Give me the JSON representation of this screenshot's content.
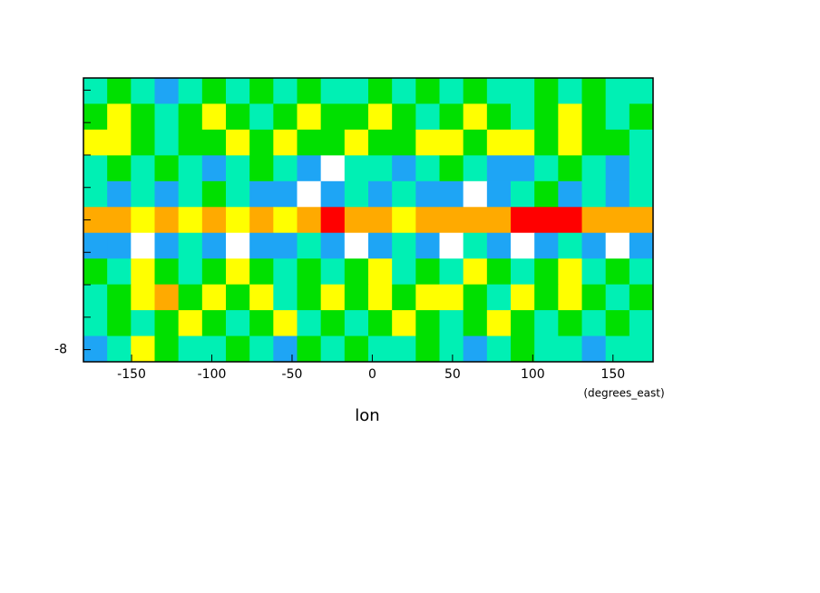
{
  "chart_data": {
    "type": "contour",
    "xlabel": "lon",
    "xunits": "(degrees_east)",
    "xlim": [
      -180,
      175
    ],
    "xticks": [
      -150,
      -100,
      -50,
      0,
      50,
      100,
      150
    ],
    "ylim": [
      -8.75,
      8.75
    ],
    "yticks": [
      -8,
      -6,
      -4,
      -2,
      0,
      2,
      4,
      6,
      8
    ],
    "ytick_labels": [
      "-8",
      null,
      null,
      null,
      null,
      null,
      null,
      null,
      null
    ],
    "level_colors": [
      "#ffffff",
      "#1ea5f5",
      "#00f0b4",
      "#00e000",
      "#ffff00",
      "#ffaa00",
      "#ff0000"
    ],
    "levels": [
      [
        2,
        3,
        2,
        1,
        2,
        3,
        2,
        3,
        2,
        3,
        2,
        2,
        3,
        2,
        3,
        2,
        3,
        2,
        2,
        3,
        2,
        3,
        2,
        2
      ],
      [
        3,
        4,
        3,
        2,
        3,
        4,
        3,
        2,
        3,
        4,
        3,
        3,
        4,
        3,
        2,
        3,
        4,
        3,
        2,
        3,
        4,
        3,
        2,
        3
      ],
      [
        4,
        4,
        3,
        2,
        3,
        3,
        4,
        3,
        4,
        3,
        3,
        4,
        3,
        3,
        4,
        4,
        3,
        4,
        4,
        3,
        4,
        3,
        3,
        2
      ],
      [
        2,
        3,
        2,
        3,
        2,
        1,
        2,
        3,
        2,
        1,
        0,
        2,
        2,
        1,
        2,
        3,
        2,
        1,
        1,
        2,
        3,
        2,
        1,
        2
      ],
      [
        2,
        1,
        2,
        1,
        2,
        3,
        2,
        1,
        1,
        0,
        1,
        2,
        1,
        2,
        1,
        1,
        0,
        1,
        2,
        3,
        1,
        2,
        1,
        2
      ],
      [
        5,
        5,
        4,
        5,
        4,
        5,
        4,
        5,
        4,
        5,
        6,
        5,
        5,
        4,
        5,
        5,
        5,
        5,
        6,
        6,
        6,
        5,
        5,
        5
      ],
      [
        1,
        1,
        0,
        1,
        2,
        1,
        0,
        1,
        1,
        2,
        1,
        0,
        1,
        2,
        1,
        0,
        2,
        1,
        0,
        1,
        2,
        1,
        0,
        1
      ],
      [
        3,
        2,
        4,
        3,
        2,
        3,
        4,
        3,
        2,
        3,
        2,
        3,
        4,
        2,
        3,
        2,
        4,
        3,
        2,
        3,
        4,
        2,
        3,
        2
      ],
      [
        2,
        3,
        4,
        5,
        3,
        4,
        3,
        4,
        2,
        3,
        4,
        3,
        4,
        3,
        4,
        4,
        3,
        2,
        4,
        3,
        4,
        3,
        2,
        3
      ],
      [
        2,
        3,
        2,
        3,
        4,
        3,
        2,
        3,
        4,
        2,
        3,
        2,
        3,
        4,
        3,
        2,
        3,
        4,
        3,
        2,
        3,
        2,
        3,
        2
      ],
      [
        1,
        2,
        4,
        3,
        2,
        2,
        3,
        2,
        1,
        3,
        2,
        3,
        2,
        2,
        3,
        2,
        1,
        2,
        3,
        2,
        2,
        1,
        2,
        2
      ]
    ]
  }
}
